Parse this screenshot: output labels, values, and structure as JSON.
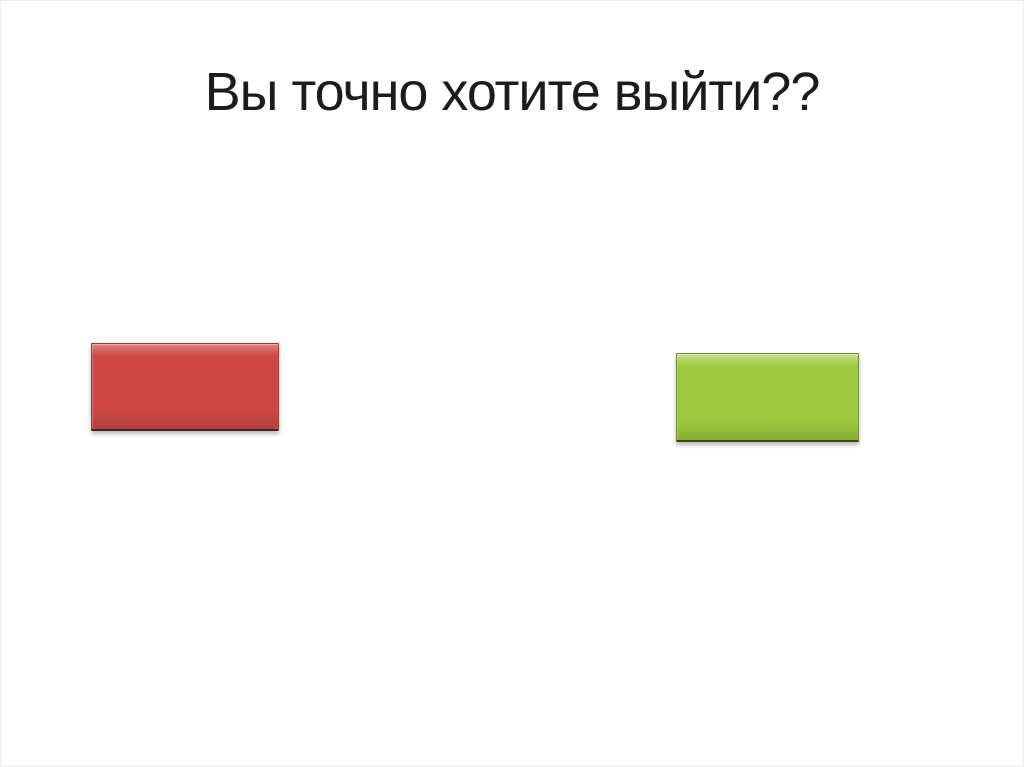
{
  "slide": {
    "title": "Вы точно хотите выйти??",
    "title_color": "#1c1c1c",
    "background_color": "#ffffff",
    "border_color": "#ececec"
  },
  "buttons": {
    "red": {
      "label": "",
      "base": "#cd4844",
      "highlight": "#e0827d",
      "shade": "#b23e3a",
      "border": "#9c3732",
      "edge": "#45231f"
    },
    "green": {
      "label": "",
      "base": "#9bc83e",
      "highlight": "#cadf8f",
      "shade": "#85ad34",
      "border": "#76883e",
      "edge": "#39421f"
    }
  }
}
